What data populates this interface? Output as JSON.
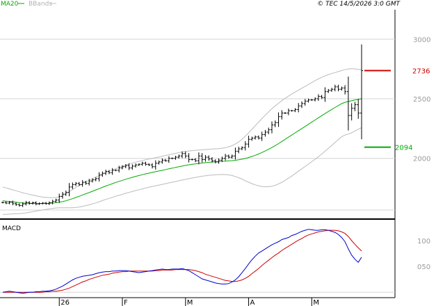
{
  "header": {
    "ma_label": "MA20",
    "bb_label": "BBands",
    "copyright": "© TEC 14/5/2026 3:0 GMT"
  },
  "macd_panel": {
    "title": "MACD"
  },
  "colors": {
    "ma": "#00aa00",
    "bb": "#bbbbbb",
    "macd": "#0000cc",
    "signal": "#cc0000",
    "price": "#000000",
    "resistance": "#cc0000",
    "support": "#00aa00",
    "grid": "#d4d4d4"
  },
  "chart_data": [
    {
      "type": "line",
      "subtype": "ohlc-bars",
      "title": "",
      "ylim": [
        1520,
        3200
      ],
      "yticks": [
        {
          "value": 3000,
          "label": "3000"
        },
        {
          "value": 2500,
          "label": "2500"
        },
        {
          "value": 2000,
          "label": "2000"
        }
      ],
      "xticks": [
        {
          "index": 17,
          "label": "26"
        },
        {
          "index": 36,
          "label": "F"
        },
        {
          "index": 55,
          "label": "M"
        },
        {
          "index": 74,
          "label": "A"
        },
        {
          "index": 93,
          "label": "M"
        }
      ],
      "levels": [
        {
          "name": "resistance",
          "value": 2736,
          "label": "2736"
        },
        {
          "name": "support",
          "value": 2094,
          "label": "2094"
        }
      ],
      "close": [
        1630,
        1625,
        1632,
        1620,
        1612,
        1605,
        1618,
        1630,
        1622,
        1628,
        1618,
        1622,
        1625,
        1620,
        1628,
        1640,
        1650,
        1680,
        1700,
        1715,
        1760,
        1780,
        1790,
        1780,
        1800,
        1790,
        1810,
        1820,
        1830,
        1860,
        1875,
        1890,
        1880,
        1900,
        1900,
        1920,
        1930,
        1940,
        1920,
        1935,
        1945,
        1950,
        1960,
        1950,
        1945,
        1930,
        1960,
        1970,
        1985,
        1980,
        2000,
        2000,
        2010,
        2020,
        2040,
        2020,
        1990,
        1990,
        1980,
        2020,
        1990,
        2010,
        1995,
        1980,
        1970,
        1985,
        2000,
        2020,
        2010,
        2020,
        2060,
        2080,
        2090,
        2120,
        2160,
        2170,
        2180,
        2170,
        2200,
        2220,
        2240,
        2280,
        2300,
        2350,
        2380,
        2380,
        2400,
        2400,
        2410,
        2440,
        2460,
        2480,
        2490,
        2490,
        2500,
        2520,
        2510,
        2560,
        2570,
        2580,
        2600,
        2580,
        2590,
        2560,
        2360,
        2420,
        2450,
        2380,
        2736
      ],
      "series": [
        {
          "name": "MA20",
          "values": [
            1645,
            1641,
            1638,
            1635,
            1632,
            1628,
            1626,
            1624,
            1623,
            1622,
            1622,
            1621,
            1621,
            1622,
            1623,
            1625,
            1628,
            1632,
            1637,
            1644,
            1653,
            1662,
            1672,
            1682,
            1693,
            1703,
            1713,
            1724,
            1735,
            1746,
            1757,
            1768,
            1778,
            1788,
            1798,
            1807,
            1816,
            1825,
            1833,
            1841,
            1849,
            1856,
            1863,
            1870,
            1876,
            1882,
            1888,
            1894,
            1900,
            1906,
            1912,
            1918,
            1924,
            1930,
            1936,
            1941,
            1946,
            1950,
            1954,
            1958,
            1961,
            1964,
            1967,
            1969,
            1971,
            1973,
            1975,
            1977,
            1979,
            1981,
            1984,
            1988,
            1993,
            1999,
            2007,
            2016,
            2026,
            2037,
            2049,
            2062,
            2076,
            2091,
            2107,
            2124,
            2142,
            2160,
            2178,
            2196,
            2214,
            2232,
            2250,
            2268,
            2286,
            2304,
            2322,
            2340,
            2358,
            2376,
            2393,
            2410,
            2427,
            2443,
            2459,
            2470,
            2477,
            2483,
            2490,
            2495,
            2500
          ]
        },
        {
          "name": "BBands upper",
          "values": [
            1760,
            1752,
            1744,
            1736,
            1728,
            1720,
            1712,
            1705,
            1698,
            1692,
            1686,
            1680,
            1675,
            1672,
            1670,
            1670,
            1672,
            1678,
            1688,
            1702,
            1720,
            1738,
            1756,
            1772,
            1788,
            1802,
            1816,
            1830,
            1843,
            1856,
            1868,
            1880,
            1892,
            1903,
            1914,
            1924,
            1934,
            1943,
            1952,
            1960,
            1968,
            1975,
            1982,
            1988,
            1994,
            2000,
            2006,
            2012,
            2018,
            2024,
            2030,
            2036,
            2042,
            2048,
            2054,
            2058,
            2062,
            2065,
            2068,
            2070,
            2072,
            2074,
            2076,
            2078,
            2080,
            2082,
            2085,
            2090,
            2097,
            2106,
            2120,
            2138,
            2160,
            2186,
            2214,
            2244,
            2274,
            2304,
            2334,
            2362,
            2390,
            2416,
            2440,
            2462,
            2484,
            2504,
            2522,
            2540,
            2556,
            2572,
            2588,
            2604,
            2620,
            2636,
            2652,
            2666,
            2680,
            2692,
            2702,
            2712,
            2720,
            2728,
            2736,
            2744,
            2750,
            2752,
            2750,
            2746,
            2742
          ]
        },
        {
          "name": "BBands lower",
          "values": [
            1530,
            1530,
            1532,
            1534,
            1536,
            1536,
            1540,
            1543,
            1548,
            1552,
            1558,
            1562,
            1567,
            1572,
            1576,
            1580,
            1584,
            1586,
            1586,
            1586,
            1586,
            1586,
            1588,
            1592,
            1598,
            1604,
            1610,
            1618,
            1627,
            1636,
            1646,
            1656,
            1664,
            1673,
            1682,
            1690,
            1698,
            1707,
            1714,
            1722,
            1730,
            1737,
            1744,
            1752,
            1758,
            1764,
            1770,
            1776,
            1782,
            1788,
            1794,
            1800,
            1806,
            1812,
            1818,
            1824,
            1830,
            1835,
            1840,
            1846,
            1850,
            1854,
            1858,
            1860,
            1862,
            1864,
            1865,
            1864,
            1861,
            1856,
            1848,
            1838,
            1826,
            1812,
            1800,
            1788,
            1778,
            1770,
            1764,
            1762,
            1762,
            1766,
            1774,
            1786,
            1800,
            1816,
            1834,
            1852,
            1872,
            1892,
            1912,
            1932,
            1952,
            1972,
            1992,
            2014,
            2036,
            2060,
            2084,
            2108,
            2134,
            2158,
            2182,
            2196,
            2204,
            2214,
            2230,
            2244,
            2258
          ]
        }
      ]
    },
    {
      "type": "line",
      "title": "MACD",
      "ylim": [
        -5,
        135
      ],
      "yticks": [
        {
          "value": 100,
          "label": "100"
        },
        {
          "value": 50,
          "label": "050"
        }
      ],
      "series": [
        {
          "name": "MACD",
          "values": [
            0,
            1,
            2,
            1,
            0,
            -1,
            -2,
            -1,
            0,
            0,
            1,
            1,
            2,
            2,
            3,
            4,
            6,
            9,
            12,
            16,
            20,
            24,
            27,
            29,
            31,
            32,
            33,
            34,
            36,
            38,
            39,
            40,
            40,
            41,
            41,
            42,
            42,
            42,
            41,
            40,
            39,
            38,
            39,
            40,
            41,
            42,
            43,
            44,
            45,
            44,
            44,
            45,
            45,
            45,
            46,
            44,
            42,
            38,
            34,
            30,
            26,
            24,
            22,
            20,
            18,
            17,
            16,
            16,
            17,
            20,
            24,
            30,
            38,
            46,
            55,
            63,
            70,
            76,
            80,
            84,
            88,
            92,
            95,
            98,
            102,
            104,
            106,
            110,
            112,
            115,
            118,
            120,
            122,
            121,
            120,
            120,
            121,
            121,
            120,
            118,
            116,
            112,
            106,
            98,
            84,
            72,
            64,
            58,
            68
          ]
        },
        {
          "name": "Signal",
          "values": [
            0,
            0,
            0,
            0,
            0,
            0,
            0,
            0,
            0,
            0,
            0,
            0,
            0,
            1,
            1,
            2,
            2,
            3,
            4,
            6,
            8,
            11,
            14,
            17,
            20,
            22,
            25,
            27,
            29,
            31,
            33,
            34,
            35,
            37,
            38,
            39,
            40,
            40,
            41,
            41,
            41,
            41,
            41,
            41,
            41,
            41,
            42,
            42,
            43,
            43,
            43,
            43,
            44,
            44,
            44,
            44,
            44,
            43,
            42,
            40,
            38,
            35,
            33,
            31,
            29,
            27,
            25,
            23,
            22,
            21,
            21,
            22,
            24,
            27,
            31,
            36,
            41,
            46,
            52,
            57,
            62,
            67,
            72,
            76,
            81,
            85,
            89,
            93,
            97,
            101,
            104,
            108,
            111,
            113,
            115,
            117,
            118,
            119,
            120,
            120,
            120,
            119,
            117,
            114,
            108,
            100,
            93,
            86,
            80
          ]
        }
      ]
    }
  ]
}
